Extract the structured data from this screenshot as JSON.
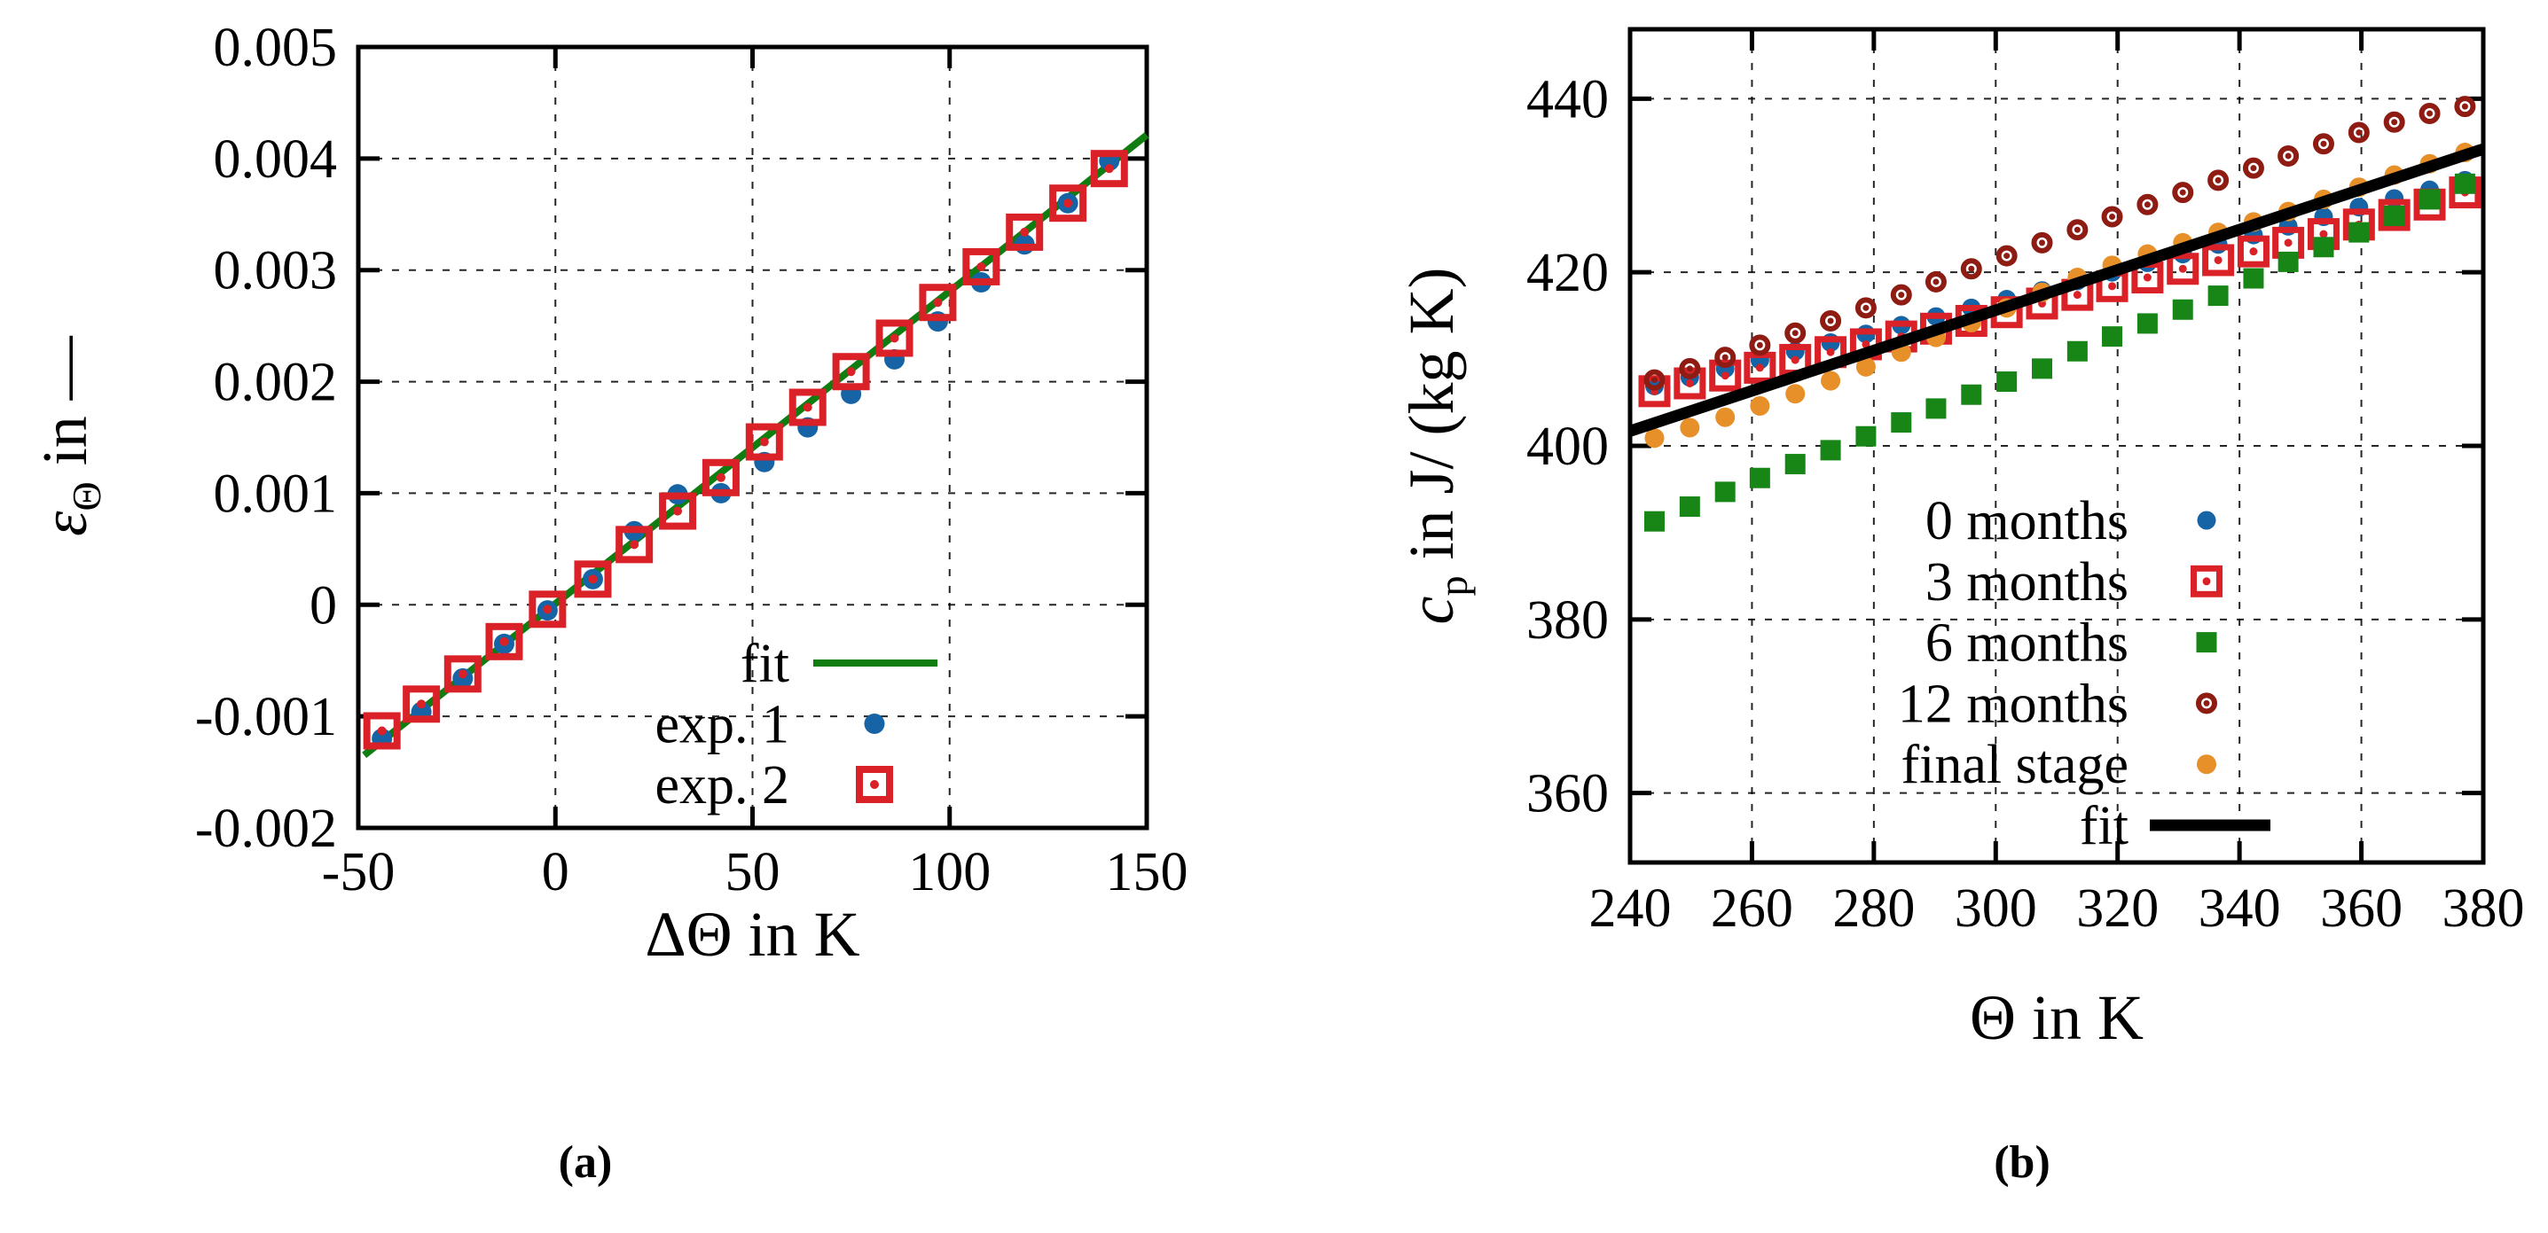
{
  "figure": {
    "background": "#ffffff",
    "caption_a": "(a)",
    "caption_b": "(b)"
  },
  "chart_data": [
    {
      "id": "plot-a",
      "type": "scatter",
      "title": "",
      "xlabel": "ΔΘ in K",
      "ylabel": "ε_Θ in —",
      "xlim": [
        -50,
        150
      ],
      "ylim": [
        -0.002,
        0.005
      ],
      "xticks": [
        -50,
        0,
        50,
        100,
        150
      ],
      "xtick_labels": [
        "-50",
        "0",
        "50",
        "100",
        "150"
      ],
      "yticks": [
        -0.002,
        -0.001,
        0,
        0.001,
        0.002,
        0.003,
        0.004,
        0.005
      ],
      "ytick_labels": [
        "-0.002",
        "-0.001",
        "0",
        "0.001",
        "0.002",
        "0.003",
        "0.004",
        "0.005"
      ],
      "grid": true,
      "legend_position": "inside lower right",
      "series": [
        {
          "name": "fit",
          "type": "line",
          "color": "#0f7d0f",
          "width": 8,
          "x": [
            -48.5,
            150
          ],
          "y": [
            -0.001348,
            0.00421
          ]
        },
        {
          "name": "exp. 1",
          "type": "points",
          "color": "#1663a6",
          "marker": {
            "type": "circle",
            "size": 23
          },
          "x": [
            -44,
            -34,
            -23.5,
            -13,
            -2,
            9.5,
            20,
            31,
            42,
            53,
            64,
            75,
            86,
            97,
            108,
            119,
            130,
            140.5
          ],
          "y": [
            -0.0012,
            -0.00096,
            -0.00066,
            -0.00035,
            -5e-05,
            0.00023,
            0.00066,
            0.00099,
            0.001,
            0.00128,
            0.00159,
            0.00189,
            0.0022,
            0.00254,
            0.00289,
            0.00323,
            0.0036,
            0.00398
          ]
        },
        {
          "name": "exp. 2",
          "type": "points",
          "color": "#da2127",
          "marker": {
            "type": "square-open-dot",
            "size": 34,
            "stroke": 8,
            "dot": 5
          },
          "x": [
            -44,
            -34,
            -23.5,
            -13,
            -2,
            9.5,
            20,
            31,
            42,
            53,
            64,
            75,
            86,
            97,
            108,
            119,
            130,
            140.5
          ],
          "y": [
            -0.00113,
            -0.00089,
            -0.00062,
            -0.00033,
            -4e-05,
            0.00023,
            0.00054,
            0.00084,
            0.00114,
            0.00146,
            0.00177,
            0.00209,
            0.00239,
            0.00271,
            0.00303,
            0.00334,
            0.0036,
            0.00391
          ]
        }
      ]
    },
    {
      "id": "plot-b",
      "type": "scatter",
      "title": "",
      "xlabel": "Θ in K",
      "ylabel": "c_p in J/ (kg K)",
      "xlim": [
        240,
        380
      ],
      "ylim": [
        352,
        448
      ],
      "xticks": [
        240,
        260,
        280,
        300,
        320,
        340,
        360,
        380
      ],
      "xtick_labels": [
        "240",
        "260",
        "280",
        "300",
        "320",
        "340",
        "360",
        "380"
      ],
      "yticks": [
        360,
        380,
        400,
        420,
        440
      ],
      "ytick_labels": [
        "360",
        "380",
        "400",
        "420",
        "440"
      ],
      "grid": true,
      "legend_position": "inside lower right",
      "series": [
        {
          "name": "0 months",
          "type": "points",
          "color": "#1663a6",
          "marker": {
            "type": "circle",
            "size": 21
          },
          "x": [
            244,
            249.8,
            255.6,
            261.3,
            267.1,
            272.9,
            278.7,
            284.5,
            290.2,
            296,
            301.8,
            307.6,
            313.4,
            319.1,
            324.9,
            330.7,
            336.5,
            342.3,
            348,
            353.8,
            359.6,
            365.4,
            371.2,
            377
          ],
          "y": [
            406.9,
            407.9,
            408.9,
            409.9,
            410.9,
            411.9,
            412.9,
            413.9,
            414.9,
            415.9,
            416.9,
            417.9,
            419.0,
            420.0,
            421.1,
            422.1,
            423.2,
            424.3,
            425.3,
            426.4,
            427.5,
            428.5,
            429.5,
            430.6
          ]
        },
        {
          "name": "3 months",
          "type": "points",
          "color": "#da2127",
          "marker": {
            "type": "square-open-dot",
            "size": 29,
            "stroke": 7,
            "dot": 4.5
          },
          "x": [
            244,
            249.8,
            255.6,
            261.3,
            267.1,
            272.9,
            278.7,
            284.5,
            290.2,
            296,
            301.8,
            307.6,
            313.4,
            319.1,
            324.9,
            330.7,
            336.5,
            342.3,
            348,
            353.8,
            359.6,
            365.4,
            371.2,
            377
          ],
          "y": [
            406.3,
            407.2,
            408.1,
            409.0,
            409.9,
            410.8,
            411.7,
            412.6,
            413.5,
            414.4,
            415.4,
            416.4,
            417.4,
            418.4,
            419.4,
            420.4,
            421.4,
            422.4,
            423.4,
            424.4,
            425.5,
            426.6,
            427.8,
            429.2
          ]
        },
        {
          "name": "6 months",
          "type": "points",
          "color": "#178617",
          "marker": {
            "type": "square",
            "size": 23
          },
          "x": [
            244,
            249.8,
            255.6,
            261.3,
            267.1,
            272.9,
            278.7,
            284.5,
            290.2,
            296,
            301.8,
            307.6,
            313.4,
            319.1,
            324.9,
            330.7,
            336.5,
            342.3,
            348,
            353.8,
            359.6,
            365.4,
            371.2,
            377
          ],
          "y": [
            391.3,
            393.0,
            394.7,
            396.3,
            397.9,
            399.5,
            401.1,
            402.7,
            404.3,
            405.9,
            407.4,
            408.9,
            410.9,
            412.6,
            414.1,
            415.7,
            417.3,
            419.3,
            421.2,
            422.9,
            424.6,
            426.5,
            428.4,
            430.2
          ]
        },
        {
          "name": "12 months",
          "type": "points",
          "color": "#8e1c13",
          "marker": {
            "type": "circle-open-dot",
            "size": 24,
            "stroke": 6,
            "dot": 3.5
          },
          "x": [
            244,
            249.8,
            255.6,
            261.3,
            267.1,
            272.9,
            278.7,
            284.5,
            290.2,
            296,
            301.8,
            307.6,
            313.4,
            319.1,
            324.9,
            330.7,
            336.5,
            342.3,
            348,
            353.8,
            359.6,
            365.4,
            371.2,
            377
          ],
          "y": [
            407.6,
            408.9,
            410.2,
            411.6,
            413.0,
            414.4,
            415.9,
            417.4,
            418.9,
            420.4,
            421.9,
            423.4,
            424.9,
            426.4,
            427.8,
            429.2,
            430.6,
            432.0,
            433.4,
            434.8,
            436.1,
            437.3,
            438.3,
            439.1
          ]
        },
        {
          "name": "final stage",
          "type": "points",
          "color": "#e79029",
          "marker": {
            "type": "circle",
            "size": 22
          },
          "x": [
            244,
            249.8,
            255.6,
            261.3,
            267.1,
            272.9,
            278.7,
            284.5,
            290.2,
            296,
            301.8,
            307.6,
            313.4,
            319.1,
            324.9,
            330.7,
            336.5,
            342.3,
            348,
            353.8,
            359.6,
            365.4,
            371.2,
            377
          ],
          "y": [
            400.9,
            402.1,
            403.3,
            404.6,
            406.0,
            407.5,
            409.1,
            410.8,
            412.5,
            414.2,
            415.9,
            417.7,
            419.4,
            420.8,
            422.1,
            423.4,
            424.6,
            425.8,
            427.0,
            428.4,
            429.8,
            431.2,
            432.5,
            433.8
          ]
        },
        {
          "name": "fit",
          "type": "line",
          "color": "#000000",
          "width": 13,
          "x": [
            240,
            380
          ],
          "y": [
            401.7,
            434.2
          ]
        }
      ]
    }
  ]
}
